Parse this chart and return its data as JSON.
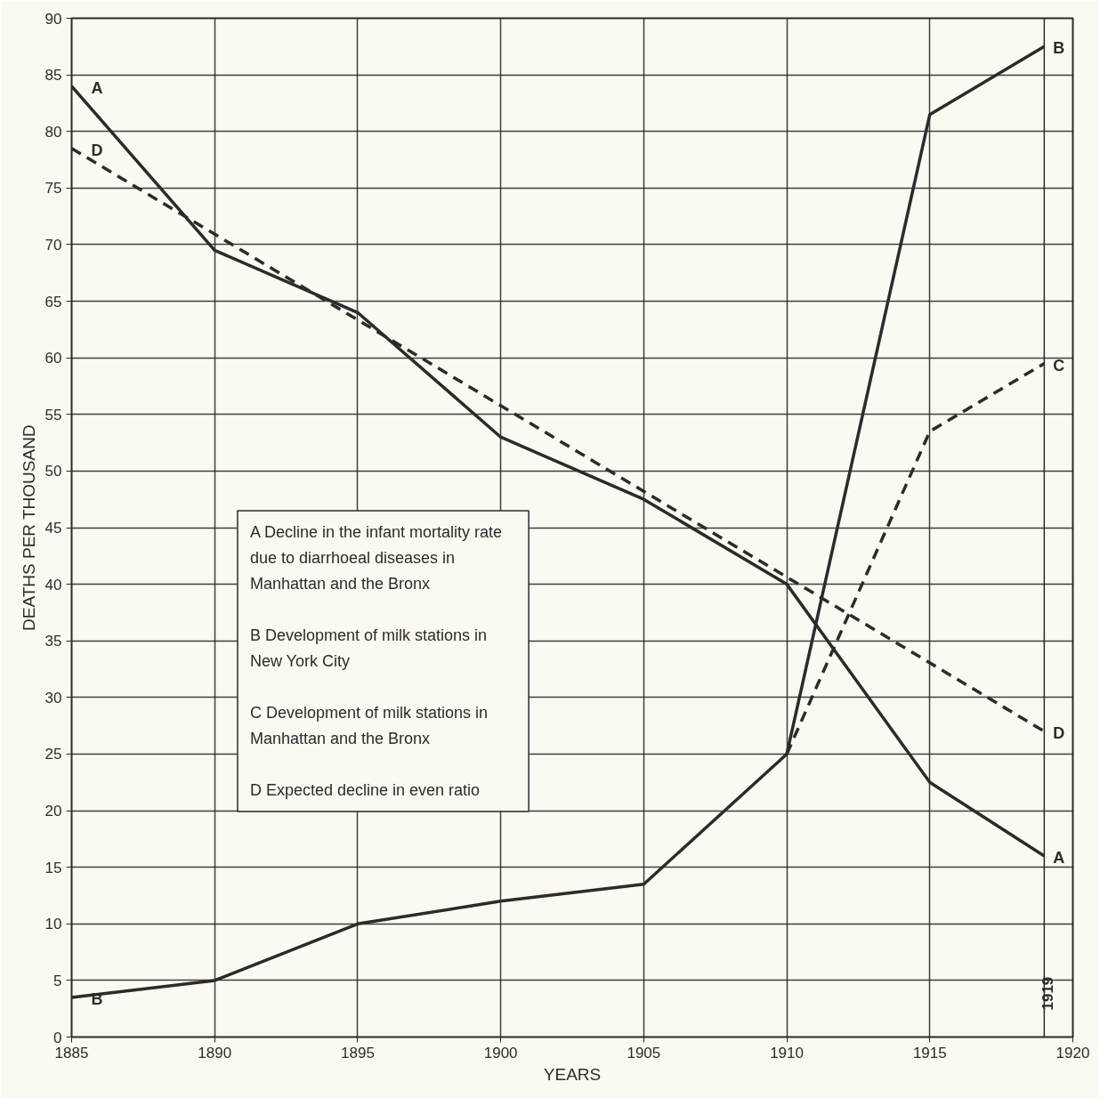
{
  "chart_data": {
    "type": "line",
    "xlabel": "YEARS",
    "ylabel": "DEATHS PER THOUSAND",
    "xlim": [
      1885,
      1920
    ],
    "xticks": [
      1885,
      1890,
      1895,
      1900,
      1905,
      1910,
      1915,
      1920
    ],
    "ylim": [
      0,
      90
    ],
    "yticks": [
      0,
      5,
      10,
      15,
      20,
      25,
      30,
      35,
      40,
      45,
      50,
      55,
      60,
      65,
      70,
      75,
      80,
      85,
      90
    ],
    "grid": true,
    "legend": "center left",
    "series": [
      {
        "name": "A",
        "color": "#2b2b2b",
        "line_style": "solid",
        "x": [
          1885,
          1890,
          1895,
          1900,
          1905,
          1910,
          1915,
          1919
        ],
        "values": [
          84,
          69.5,
          64,
          53,
          47.5,
          40,
          22.5,
          16
        ]
      },
      {
        "name": "B",
        "color": "#2b2b2b",
        "line_style": "solid",
        "x": [
          1885,
          1890,
          1895,
          1900,
          1905,
          1910,
          1915,
          1919
        ],
        "values": [
          3.5,
          5,
          10,
          12,
          13.5,
          25,
          81.5,
          87.5
        ]
      },
      {
        "name": "C",
        "color": "#2b2b2b",
        "line_style": "dashed",
        "x": [
          1910,
          1915,
          1919
        ],
        "values": [
          25,
          53.5,
          59.5
        ]
      },
      {
        "name": "D",
        "color": "#2b2b2b",
        "line_style": "dashed",
        "x": [
          1885,
          1919
        ],
        "values": [
          78.5,
          27
        ]
      }
    ],
    "annotations": [
      "Decline in the infant mortality rate\ndue to diarrhoeal diseases in\nManhattan and the Bronx",
      "Development of milk stations in\nNew York City",
      "Development of milk stations in\nManhattan and the Bronx",
      "Expected decline in even ratio"
    ],
    "ref_lines": [
      {
        "axis": "x",
        "value": 1919,
        "label": "1919"
      }
    ]
  }
}
